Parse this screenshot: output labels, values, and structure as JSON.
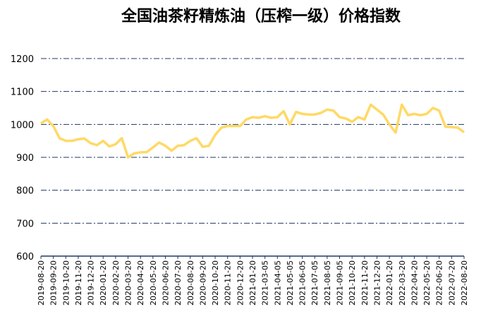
{
  "chart_data": {
    "type": "line",
    "title": "全国油茶籽精炼油（压榨一级）价格指数",
    "categories": [
      "2019-08-20",
      null,
      "2019-09-20",
      null,
      "2019-10-20",
      null,
      "2019-11-20",
      null,
      "2019-12-20",
      null,
      "2020-01-20",
      null,
      "2020-02-20",
      null,
      "2020-03-20",
      null,
      "2020-04-20",
      null,
      "2020-05-20",
      null,
      "2020-06-20",
      null,
      "2020-07-20",
      null,
      "2020-08-20",
      null,
      "2020-09-20",
      null,
      "2020-10-20",
      null,
      "2020-11-20",
      null,
      "2020-12-20",
      null,
      "2021-01-20",
      null,
      "2021-03-05",
      null,
      "2021-04-05",
      null,
      "2021-05-05",
      null,
      "2021-06-05",
      null,
      "2021-07-05",
      null,
      "2021-08-05",
      null,
      "2021-09-05",
      null,
      "2021-10-20",
      null,
      "2021-11-20",
      null,
      "2021-12-20",
      null,
      "2022-01-20",
      null,
      "2022-03-20",
      null,
      "2022-04-20",
      null,
      "2022-05-20",
      null,
      "2022-06-20",
      null,
      "2022-07-20",
      null,
      "2022-08-20"
    ],
    "series": [
      {
        "color": "#ffd966",
        "values": [
          1003,
          1015,
          995,
          958,
          950,
          950,
          955,
          957,
          943,
          937,
          950,
          933,
          940,
          958,
          900,
          912,
          915,
          916,
          930,
          945,
          935,
          920,
          935,
          937,
          950,
          958,
          932,
          935,
          968,
          990,
          995,
          995,
          995,
          1015,
          1022,
          1020,
          1025,
          1020,
          1022,
          1040,
          1000,
          1038,
          1032,
          1030,
          1030,
          1035,
          1045,
          1042,
          1022,
          1018,
          1008,
          1022,
          1015,
          1060,
          1045,
          1030,
          1000,
          975,
          1060,
          1028,
          1032,
          1028,
          1032,
          1050,
          1042,
          993,
          992,
          990,
          976
        ]
      }
    ],
    "ylim": [
      600,
      1200
    ],
    "yticks": [
      600,
      700,
      800,
      900,
      1000,
      1100,
      1200
    ],
    "grid": true
  }
}
